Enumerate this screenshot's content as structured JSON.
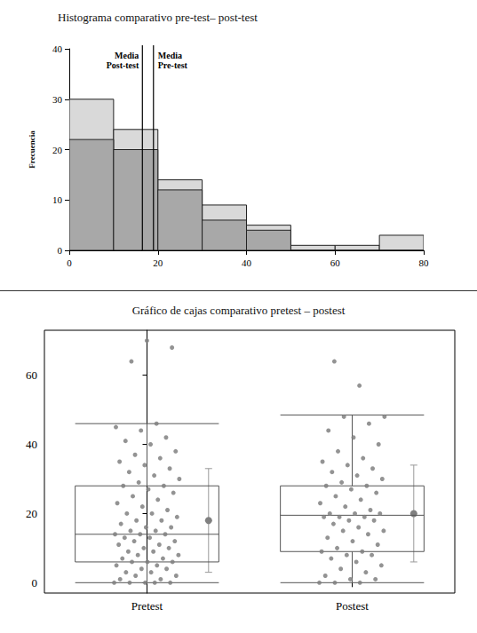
{
  "chart_data": [
    {
      "type": "histogram",
      "title": "Histograma comparativo pre-test– post-test",
      "y_label": "Frecuencia",
      "bins": [
        0,
        10,
        20,
        30,
        40,
        50,
        60,
        70,
        80
      ],
      "series": [
        {
          "color": "#d9d9d9",
          "values": [
            30,
            24,
            14,
            9,
            5,
            1,
            1,
            3
          ]
        },
        {
          "color": "#a8a8a8",
          "values": [
            22,
            20,
            12,
            6,
            4,
            0,
            0,
            0
          ]
        }
      ],
      "xlim": [
        0,
        80
      ],
      "xticks": [
        0,
        20,
        40,
        60,
        80
      ],
      "ylim": [
        0,
        40
      ],
      "yticks": [
        0,
        10,
        20,
        30,
        40
      ],
      "vlines": [
        {
          "x": 16.5,
          "label": "Media Post-test"
        },
        {
          "x": 19,
          "label": "Media Pre-test"
        }
      ]
    },
    {
      "type": "boxplot",
      "title": "Gráfico de cajas comparativo pretest – postest",
      "categories": [
        "Pretest",
        "Postest"
      ],
      "boxes": [
        [
          0,
          6,
          14,
          28,
          46
        ],
        [
          0,
          9,
          19.5,
          28,
          48.5
        ]
      ],
      "points": [
        [
          0,
          0,
          0,
          0,
          0,
          1,
          1,
          2,
          2,
          3,
          3,
          4,
          4,
          5,
          5,
          6,
          6,
          6,
          7,
          7,
          8,
          8,
          9,
          9,
          10,
          10,
          11,
          11,
          12,
          12,
          13,
          13,
          14,
          14,
          14,
          15,
          15,
          16,
          16,
          17,
          18,
          18,
          19,
          20,
          20,
          21,
          22,
          23,
          24,
          25,
          26,
          27,
          28,
          28,
          29,
          30,
          31,
          32,
          33,
          34,
          35,
          36,
          37,
          38,
          40,
          41,
          42,
          44,
          45,
          46,
          64,
          68,
          70
        ],
        [
          0,
          0,
          0,
          1,
          1,
          2,
          3,
          4,
          5,
          6,
          7,
          8,
          8,
          9,
          9,
          10,
          11,
          12,
          13,
          14,
          15,
          15,
          16,
          17,
          18,
          18,
          19,
          19,
          19,
          20,
          20,
          20,
          21,
          22,
          23,
          24,
          25,
          26,
          27,
          28,
          28,
          29,
          30,
          31,
          32,
          33,
          34,
          35,
          36,
          38,
          40,
          42,
          44,
          46,
          48,
          48,
          57,
          64
        ]
      ],
      "means": [
        18,
        20
      ],
      "error_bars": [
        [
          3,
          33
        ],
        [
          6,
          34
        ]
      ],
      "color": "#808080",
      "ylim": [
        -3,
        73
      ],
      "yticks": [
        0,
        20,
        40,
        60
      ]
    }
  ]
}
